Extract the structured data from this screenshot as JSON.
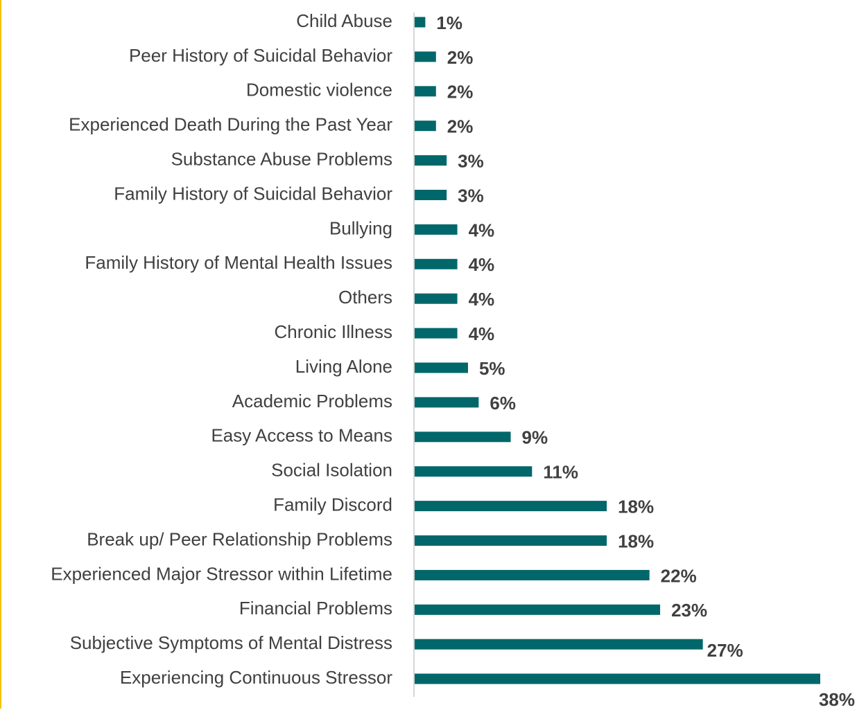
{
  "chart_data": {
    "type": "bar",
    "orientation": "horizontal",
    "categories": [
      "Child Abuse",
      "Peer History of Suicidal Behavior",
      "Domestic violence",
      "Experienced Death During the Past Year",
      "Substance Abuse Problems",
      "Family History of Suicidal Behavior",
      "Bullying",
      "Family History of Mental Health Issues",
      "Others",
      "Chronic Illness",
      "Living Alone",
      "Academic Problems",
      "Easy Access to Means",
      "Social Isolation",
      "Family Discord",
      "Break up/ Peer Relationship Problems",
      "Experienced Major Stressor within Lifetime",
      "Financial Problems",
      "Subjective Symptoms of Mental Distress",
      "Experiencing Continuous Stressor"
    ],
    "values": [
      1,
      2,
      2,
      2,
      3,
      3,
      4,
      4,
      4,
      4,
      5,
      6,
      9,
      11,
      18,
      18,
      22,
      23,
      27,
      38
    ],
    "value_labels": [
      "1%",
      "2%",
      "2%",
      "2%",
      "3%",
      "3%",
      "4%",
      "4%",
      "4%",
      "4%",
      "5%",
      "6%",
      "9%",
      "11%",
      "18%",
      "18%",
      "22%",
      "23%",
      "27%",
      "38%"
    ],
    "color": "#01676a",
    "xlim": [
      0,
      38
    ]
  }
}
